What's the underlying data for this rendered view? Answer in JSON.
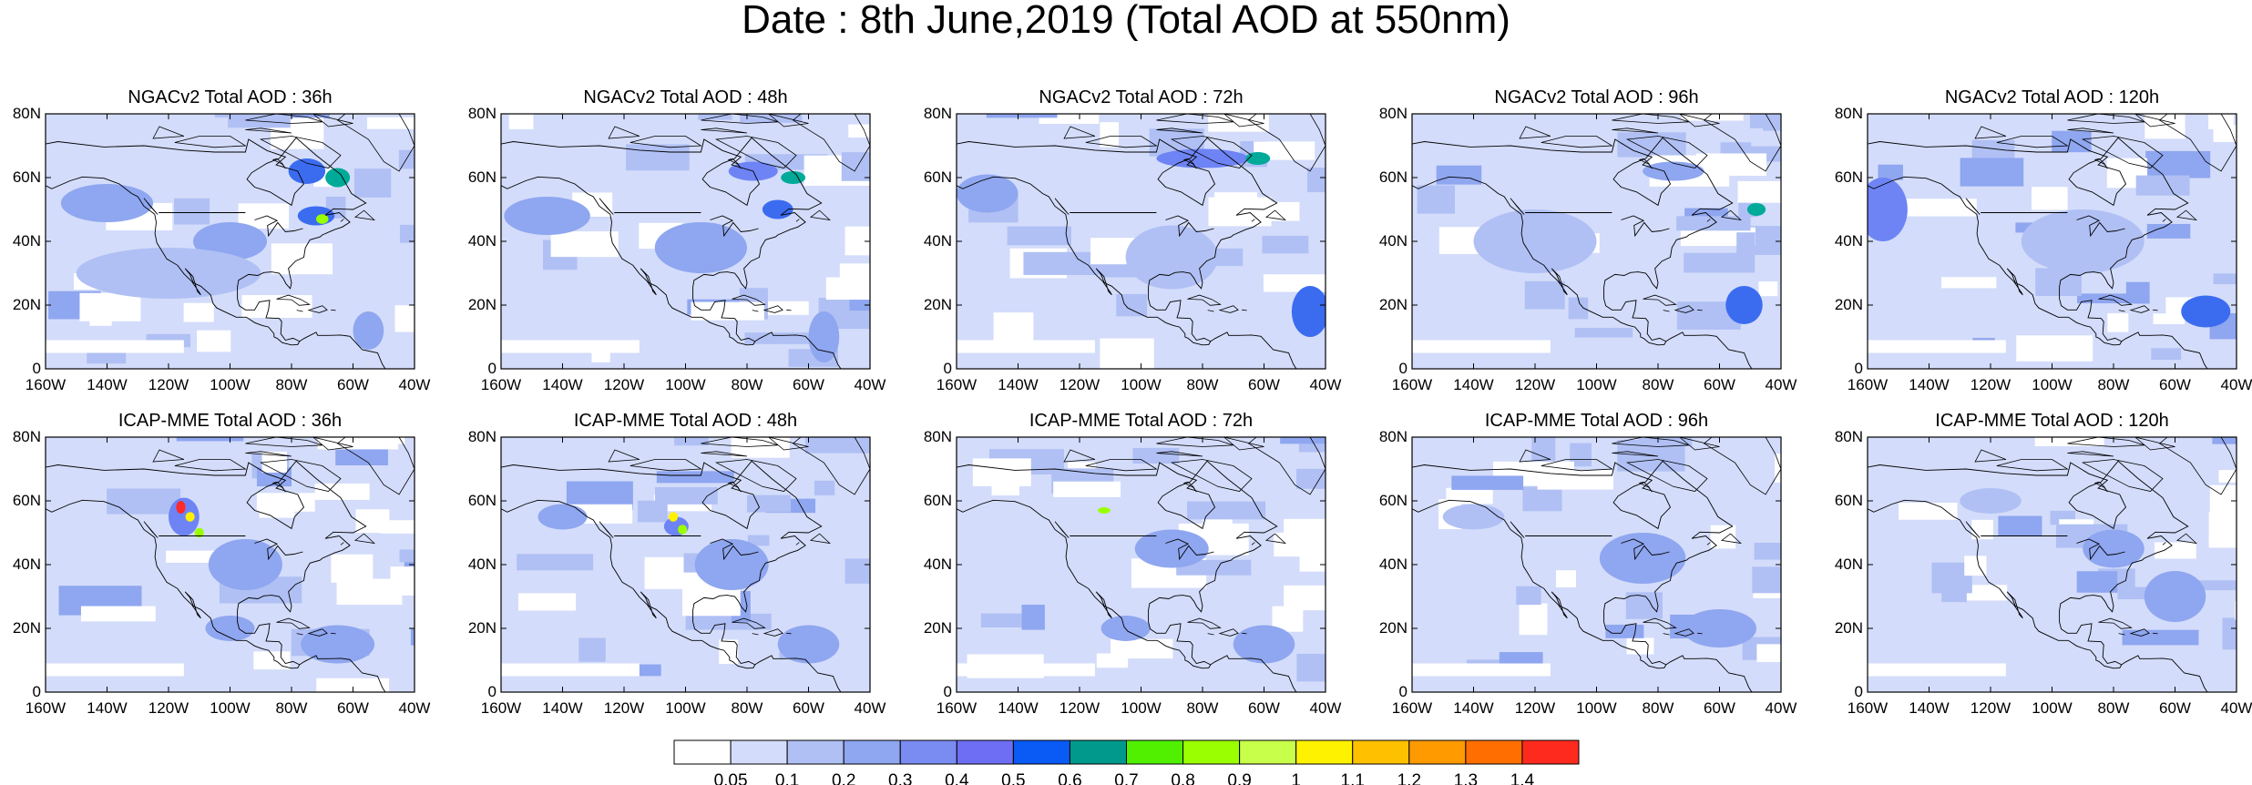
{
  "title": "Date : 8th June,2019 (Total AOD at 550nm)",
  "panels": [
    {
      "title": "NGACv2 Total AOD : 36h",
      "blobs": [
        [
          -75,
          62,
          6,
          4,
          "#3b6cf0"
        ],
        [
          -65,
          60,
          4,
          3,
          "#00aa99"
        ],
        [
          -72,
          48,
          6,
          3,
          "#3b6cf0"
        ],
        [
          -70,
          47,
          2,
          1.5,
          "#9aff00"
        ],
        [
          -100,
          40,
          12,
          6,
          "#8fa6f0"
        ],
        [
          -140,
          52,
          15,
          6,
          "#8fa6f0"
        ],
        [
          -120,
          30,
          30,
          8,
          "#b0c0f4"
        ],
        [
          -55,
          12,
          5,
          6,
          "#8fa6f0"
        ]
      ]
    },
    {
      "title": "NGACv2 Total AOD : 48h",
      "blobs": [
        [
          -78,
          62,
          8,
          3,
          "#6e84f5"
        ],
        [
          -65,
          60,
          4,
          2,
          "#00aa99"
        ],
        [
          -70,
          50,
          5,
          3,
          "#3b6cf0"
        ],
        [
          -145,
          48,
          14,
          6,
          "#8fa6f0"
        ],
        [
          -95,
          38,
          15,
          8,
          "#8fa6f0"
        ],
        [
          -55,
          10,
          5,
          8,
          "#8fa6f0"
        ]
      ]
    },
    {
      "title": "NGACv2 Total AOD : 72h",
      "blobs": [
        [
          -80,
          66,
          15,
          3,
          "#6e84f5"
        ],
        [
          -62,
          66,
          4,
          2,
          "#00aa99"
        ],
        [
          -150,
          55,
          10,
          6,
          "#8fa6f0"
        ],
        [
          -45,
          18,
          6,
          8,
          "#3b6cf0"
        ],
        [
          -90,
          35,
          15,
          10,
          "#b0c0f4"
        ]
      ]
    },
    {
      "title": "NGACv2 Total AOD : 96h",
      "blobs": [
        [
          -75,
          62,
          10,
          3,
          "#8fa6f0"
        ],
        [
          -48,
          50,
          3,
          2,
          "#00aa99"
        ],
        [
          -52,
          20,
          6,
          6,
          "#3b6cf0"
        ],
        [
          -120,
          40,
          20,
          10,
          "#b0c0f4"
        ]
      ]
    },
    {
      "title": "NGACv2 Total AOD : 120h",
      "blobs": [
        [
          -155,
          50,
          8,
          10,
          "#6e84f5"
        ],
        [
          -50,
          18,
          8,
          5,
          "#3b6cf0"
        ],
        [
          -90,
          40,
          20,
          10,
          "#b0c0f4"
        ]
      ]
    },
    {
      "title": "ICAP-MME Total AOD : 36h",
      "blobs": [
        [
          -115,
          55,
          5,
          6,
          "#6e84f5"
        ],
        [
          -116,
          58,
          1.5,
          2,
          "#ff2a2a"
        ],
        [
          -113,
          55,
          1.5,
          1.5,
          "#fff200"
        ],
        [
          -110,
          50,
          1.5,
          1.5,
          "#9aff00"
        ],
        [
          -95,
          40,
          12,
          8,
          "#8fa6f0"
        ],
        [
          -65,
          15,
          12,
          6,
          "#8fa6f0"
        ],
        [
          -100,
          20,
          8,
          4,
          "#8fa6f0"
        ]
      ]
    },
    {
      "title": "ICAP-MME Total AOD : 48h",
      "blobs": [
        [
          -103,
          52,
          4,
          3,
          "#6e84f5"
        ],
        [
          -104,
          55,
          1.5,
          1.5,
          "#fff200"
        ],
        [
          -101,
          51,
          1.5,
          1.5,
          "#9aff00"
        ],
        [
          -85,
          40,
          12,
          8,
          "#8fa6f0"
        ],
        [
          -60,
          15,
          10,
          6,
          "#8fa6f0"
        ],
        [
          -140,
          55,
          8,
          4,
          "#8fa6f0"
        ]
      ]
    },
    {
      "title": "ICAP-MME Total AOD : 72h",
      "blobs": [
        [
          -112,
          57,
          2,
          1,
          "#9aff00"
        ],
        [
          -90,
          45,
          12,
          6,
          "#8fa6f0"
        ],
        [
          -60,
          15,
          10,
          6,
          "#8fa6f0"
        ],
        [
          -105,
          20,
          8,
          4,
          "#8fa6f0"
        ]
      ]
    },
    {
      "title": "ICAP-MME Total AOD : 96h",
      "blobs": [
        [
          -85,
          42,
          14,
          8,
          "#8fa6f0"
        ],
        [
          -60,
          20,
          12,
          6,
          "#8fa6f0"
        ],
        [
          -140,
          55,
          10,
          4,
          "#b0c0f4"
        ]
      ]
    },
    {
      "title": "ICAP-MME Total AOD : 120h",
      "blobs": [
        [
          -80,
          45,
          10,
          6,
          "#8fa6f0"
        ],
        [
          -60,
          30,
          10,
          8,
          "#8fa6f0"
        ],
        [
          -120,
          60,
          10,
          4,
          "#b0c0f4"
        ]
      ]
    }
  ],
  "lat_labels": [
    "80N",
    "60N",
    "40N",
    "20N",
    "0"
  ],
  "lon_labels": [
    "160W",
    "140W",
    "120W",
    "100W",
    "80W",
    "60W",
    "40W"
  ],
  "colorbar": {
    "colors": [
      "#ffffff",
      "#d3dcfa",
      "#b0c0f4",
      "#8fa6f0",
      "#7a8cf2",
      "#6e6ef5",
      "#0a5af5",
      "#00998c",
      "#50f000",
      "#9aff00",
      "#c8ff4a",
      "#fff200",
      "#ffc000",
      "#ff9a00",
      "#ff6e00",
      "#ff2a1e"
    ],
    "labels": [
      "0.05",
      "0.1",
      "0.2",
      "0.3",
      "0.4",
      "0.5",
      "0.6",
      "0.7",
      "0.8",
      "0.9",
      "1",
      "1.1",
      "1.2",
      "1.3",
      "1.4"
    ]
  },
  "colors": {
    "background": "#d3dcfa",
    "coast": "#000000",
    "clear": "#ffffff"
  }
}
